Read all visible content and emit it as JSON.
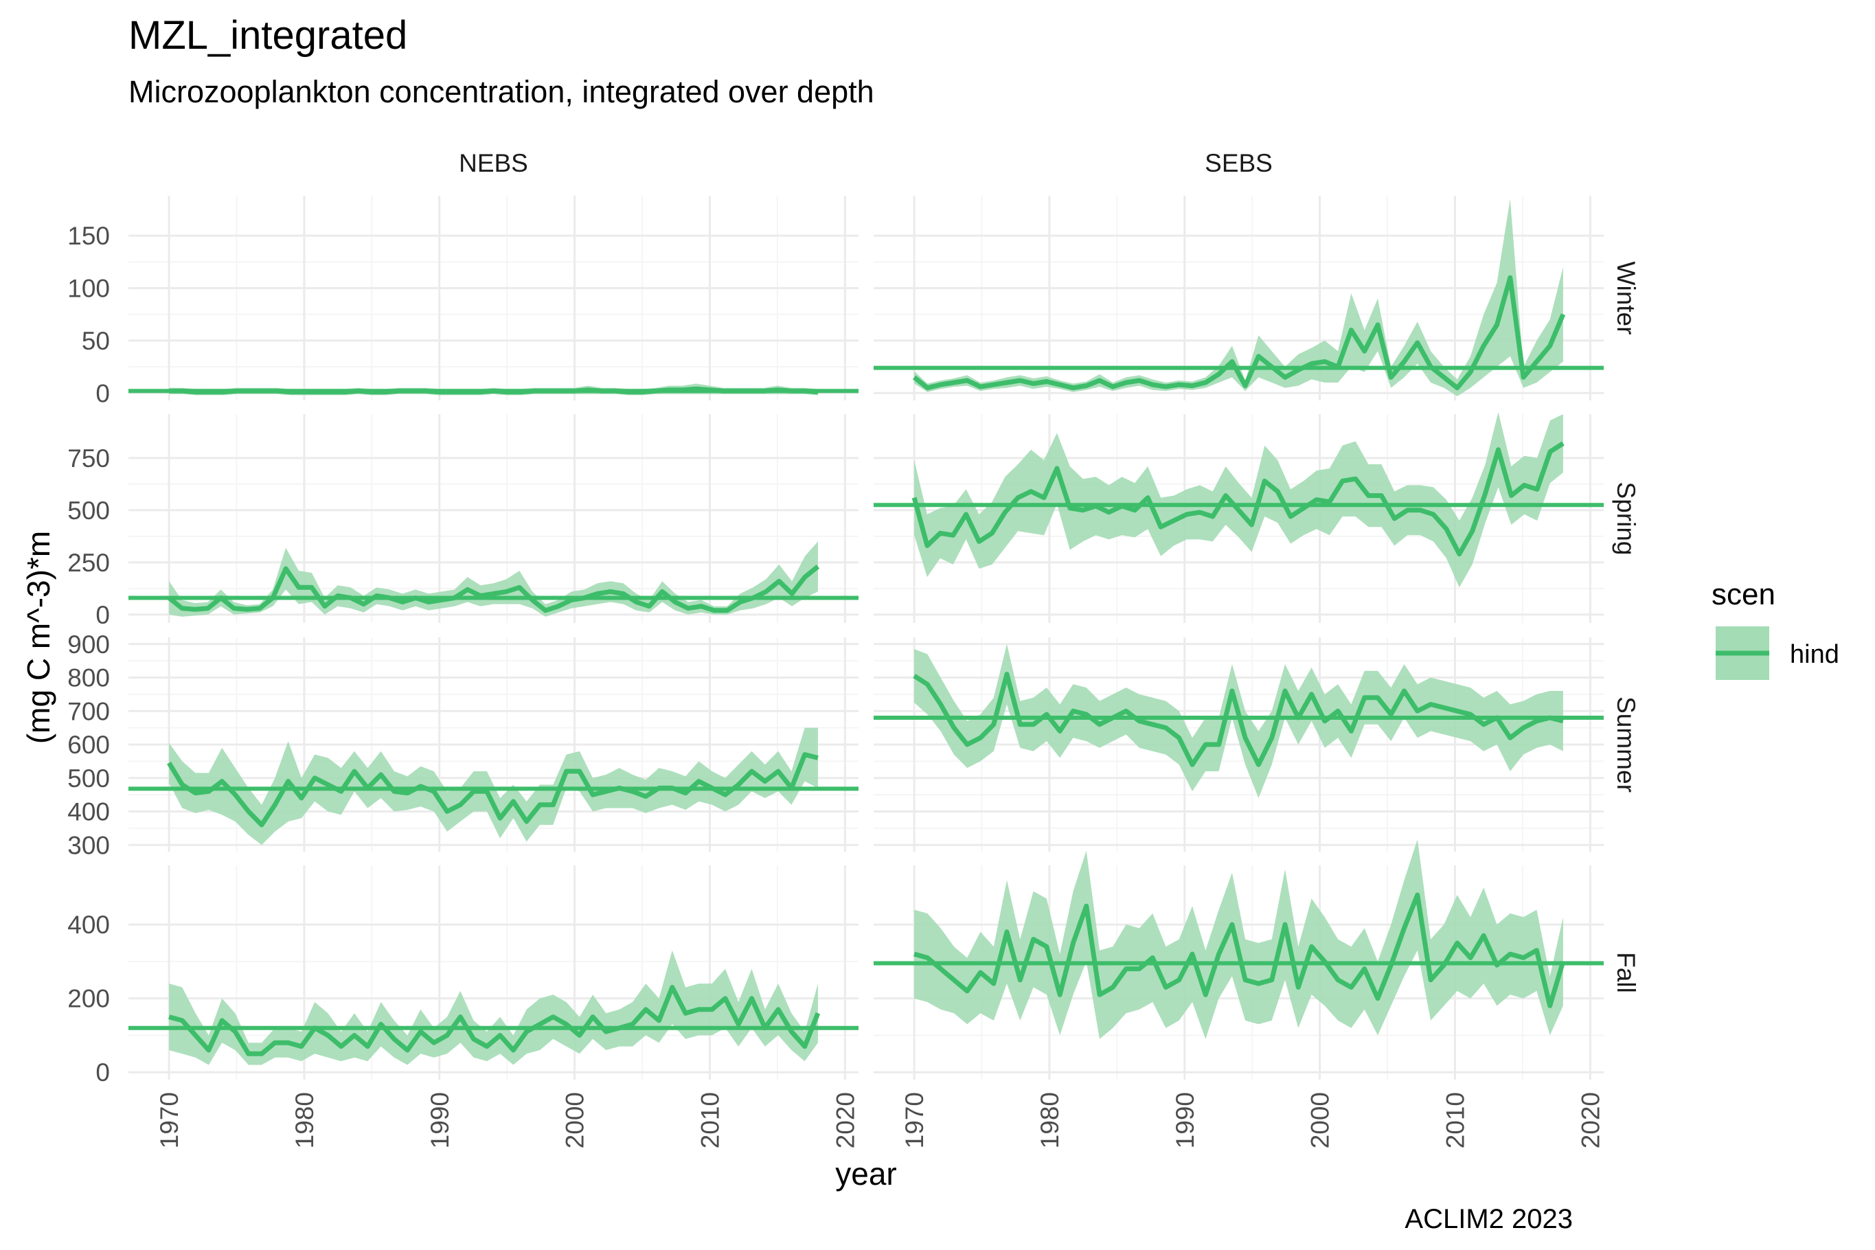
{
  "header": {
    "title": "MZL_integrated",
    "subtitle": "Microzooplankton concentration, integrated over depth",
    "caption": "ACLIM2 2023"
  },
  "colors": {
    "line": "#3dbd6a",
    "band": "#a4dcb5",
    "grid_major": "#ebebeb",
    "grid_minor": "#f5f5f5"
  },
  "chart_data": {
    "type": "line",
    "xlabel": "year",
    "ylabel": "(mg C m^-3)*m",
    "columns": [
      "NEBS",
      "SEBS"
    ],
    "rows": [
      "Winter",
      "Spring",
      "Summer",
      "Fall"
    ],
    "x_range": [
      1970,
      2018
    ],
    "xlim": [
      1967,
      2021
    ],
    "x_ticks": [
      1970,
      1980,
      1990,
      2000,
      2010,
      2020
    ],
    "legend": {
      "title": "scen",
      "entries": [
        "hind"
      ],
      "position": "right"
    },
    "row_scales": {
      "Winter": {
        "ylim": [
          -7,
          188
        ],
        "ticks": [
          0,
          50,
          100,
          150
        ]
      },
      "Spring": {
        "ylim": [
          -40,
          960
        ],
        "ticks": [
          0,
          250,
          500,
          750
        ]
      },
      "Summer": {
        "ylim": [
          280,
          920
        ],
        "ticks": [
          300,
          400,
          500,
          600,
          700,
          800,
          900
        ]
      },
      "Fall": {
        "ylim": [
          -20,
          560
        ],
        "ticks": [
          0,
          200,
          400
        ]
      }
    },
    "panels": [
      {
        "col": "NEBS",
        "row": "Winter",
        "hline": 2,
        "values": [
          2,
          2,
          1,
          1,
          1,
          2,
          2,
          2,
          2,
          1,
          1,
          1,
          1,
          1,
          2,
          1,
          1,
          2,
          2,
          2,
          1,
          1,
          1,
          1,
          2,
          1,
          1,
          2,
          2,
          2,
          2,
          3,
          2,
          2,
          1,
          1,
          2,
          3,
          3,
          4,
          3,
          2,
          2,
          2,
          2,
          3,
          2,
          2,
          1
        ],
        "spread": [
          3,
          3,
          3,
          3,
          3,
          3,
          3,
          3,
          3,
          3,
          3,
          3,
          3,
          3,
          3,
          3,
          3,
          3,
          3,
          3,
          3,
          3,
          3,
          3,
          3,
          3,
          3,
          3,
          3,
          3,
          3,
          4,
          3,
          3,
          3,
          3,
          3,
          4,
          4,
          5,
          4,
          3,
          3,
          3,
          3,
          4,
          3,
          3,
          3
        ]
      },
      {
        "col": "SEBS",
        "row": "Winter",
        "hline": 24,
        "values": [
          15,
          5,
          8,
          10,
          12,
          6,
          8,
          10,
          12,
          9,
          11,
          8,
          5,
          7,
          12,
          6,
          10,
          12,
          8,
          6,
          8,
          7,
          10,
          18,
          30,
          7,
          35,
          25,
          15,
          22,
          28,
          30,
          25,
          60,
          40,
          65,
          15,
          30,
          48,
          25,
          15,
          5,
          20,
          45,
          65,
          110,
          15,
          30,
          45,
          75
        ],
        "spread": [
          6,
          4,
          4,
          4,
          5,
          4,
          4,
          5,
          5,
          5,
          5,
          4,
          4,
          4,
          6,
          4,
          5,
          5,
          5,
          4,
          4,
          4,
          5,
          8,
          15,
          5,
          20,
          15,
          10,
          15,
          15,
          20,
          15,
          35,
          20,
          25,
          10,
          15,
          20,
          15,
          10,
          8,
          15,
          30,
          40,
          75,
          10,
          20,
          25,
          45
        ]
      },
      {
        "col": "NEBS",
        "row": "Spring",
        "hline": 80,
        "values": [
          80,
          30,
          25,
          30,
          80,
          30,
          25,
          30,
          80,
          220,
          130,
          130,
          40,
          90,
          80,
          50,
          90,
          80,
          60,
          80,
          60,
          70,
          80,
          120,
          90,
          100,
          110,
          130,
          70,
          20,
          40,
          70,
          80,
          100,
          110,
          100,
          60,
          40,
          110,
          60,
          30,
          40,
          20,
          20,
          60,
          80,
          110,
          160,
          100,
          180,
          230
        ],
        "spread": [
          80,
          40,
          30,
          30,
          40,
          30,
          20,
          20,
          40,
          100,
          80,
          70,
          40,
          50,
          50,
          40,
          40,
          40,
          40,
          40,
          40,
          40,
          40,
          60,
          50,
          50,
          60,
          80,
          40,
          30,
          30,
          40,
          40,
          50,
          50,
          50,
          40,
          30,
          50,
          40,
          30,
          30,
          20,
          20,
          40,
          50,
          60,
          80,
          60,
          100,
          120
        ]
      },
      {
        "col": "SEBS",
        "row": "Spring",
        "hline": 525,
        "values": [
          560,
          330,
          390,
          380,
          480,
          350,
          390,
          490,
          560,
          590,
          560,
          700,
          510,
          500,
          520,
          490,
          520,
          500,
          560,
          420,
          450,
          480,
          490,
          470,
          570,
          500,
          430,
          640,
          590,
          470,
          510,
          550,
          540,
          640,
          650,
          570,
          570,
          460,
          500,
          500,
          480,
          410,
          290,
          400,
          580,
          790,
          570,
          620,
          600,
          780,
          820
        ],
        "spread": [
          180,
          150,
          120,
          140,
          120,
          130,
          150,
          170,
          160,
          200,
          180,
          170,
          200,
          150,
          140,
          130,
          140,
          130,
          150,
          140,
          120,
          120,
          130,
          120,
          140,
          130,
          130,
          170,
          150,
          130,
          130,
          140,
          160,
          170,
          180,
          150,
          150,
          130,
          120,
          120,
          130,
          140,
          160,
          160,
          140,
          180,
          140,
          140,
          150,
          150,
          140
        ]
      },
      {
        "col": "NEBS",
        "row": "Summer",
        "hline": 468,
        "values": [
          545,
          480,
          455,
          460,
          490,
          450,
          400,
          360,
          420,
          490,
          440,
          500,
          480,
          460,
          520,
          470,
          510,
          460,
          455,
          475,
          460,
          400,
          420,
          460,
          460,
          380,
          430,
          370,
          420,
          420,
          520,
          520,
          450,
          460,
          470,
          460,
          445,
          470,
          470,
          455,
          490,
          470,
          450,
          480,
          520,
          490,
          520,
          470,
          570,
          560
        ],
        "spread": [
          60,
          70,
          60,
          55,
          100,
          80,
          70,
          60,
          80,
          120,
          60,
          70,
          80,
          70,
          60,
          60,
          70,
          60,
          50,
          60,
          60,
          60,
          50,
          60,
          60,
          60,
          50,
          60,
          60,
          60,
          50,
          60,
          50,
          50,
          60,
          50,
          50,
          60,
          50,
          50,
          60,
          50,
          50,
          60,
          60,
          50,
          60,
          50,
          80,
          90
        ]
      },
      {
        "col": "SEBS",
        "row": "Summer",
        "hline": 680,
        "values": [
          805,
          780,
          720,
          650,
          600,
          620,
          660,
          810,
          660,
          660,
          690,
          640,
          700,
          690,
          660,
          680,
          700,
          670,
          660,
          650,
          620,
          540,
          600,
          600,
          760,
          620,
          540,
          620,
          760,
          680,
          750,
          670,
          700,
          640,
          740,
          740,
          690,
          760,
          700,
          720,
          710,
          700,
          690,
          660,
          680,
          620,
          650,
          670,
          680,
          670
        ],
        "spread": [
          80,
          90,
          80,
          80,
          70,
          70,
          80,
          90,
          70,
          80,
          80,
          80,
          80,
          80,
          70,
          70,
          70,
          80,
          80,
          80,
          80,
          80,
          80,
          80,
          80,
          80,
          100,
          80,
          80,
          80,
          80,
          80,
          80,
          80,
          80,
          80,
          80,
          80,
          80,
          80,
          80,
          80,
          80,
          80,
          80,
          100,
          80,
          80,
          80,
          90
        ]
      },
      {
        "col": "NEBS",
        "row": "Fall",
        "hline": 120,
        "values": [
          150,
          140,
          100,
          60,
          140,
          110,
          50,
          50,
          80,
          80,
          70,
          120,
          100,
          70,
          100,
          70,
          130,
          90,
          60,
          110,
          80,
          100,
          150,
          90,
          70,
          100,
          60,
          110,
          130,
          150,
          130,
          100,
          150,
          110,
          120,
          130,
          170,
          140,
          230,
          160,
          170,
          170,
          200,
          130,
          200,
          120,
          170,
          110,
          70,
          160
        ],
        "spread": [
          90,
          90,
          60,
          40,
          60,
          50,
          30,
          30,
          40,
          40,
          40,
          70,
          60,
          40,
          60,
          40,
          60,
          50,
          40,
          60,
          40,
          50,
          70,
          50,
          40,
          50,
          40,
          60,
          70,
          60,
          60,
          50,
          60,
          50,
          50,
          60,
          70,
          60,
          100,
          70,
          70,
          70,
          80,
          60,
          80,
          50,
          70,
          50,
          40,
          80
        ]
      },
      {
        "col": "SEBS",
        "row": "Fall",
        "hline": 295,
        "values": [
          320,
          310,
          280,
          250,
          220,
          270,
          240,
          380,
          250,
          360,
          340,
          210,
          350,
          450,
          210,
          230,
          280,
          280,
          310,
          230,
          250,
          320,
          210,
          320,
          400,
          250,
          240,
          250,
          400,
          230,
          340,
          300,
          250,
          230,
          280,
          200,
          290,
          390,
          480,
          250,
          290,
          350,
          310,
          370,
          290,
          320,
          310,
          330,
          180,
          300
        ],
        "spread": [
          120,
          120,
          110,
          90,
          90,
          110,
          100,
          140,
          110,
          130,
          130,
          110,
          140,
          150,
          120,
          110,
          120,
          110,
          120,
          110,
          110,
          130,
          120,
          120,
          140,
          110,
          110,
          110,
          150,
          110,
          130,
          120,
          110,
          110,
          110,
          100,
          110,
          130,
          150,
          110,
          110,
          130,
          110,
          130,
          110,
          110,
          110,
          110,
          80,
          120
        ]
      }
    ]
  }
}
